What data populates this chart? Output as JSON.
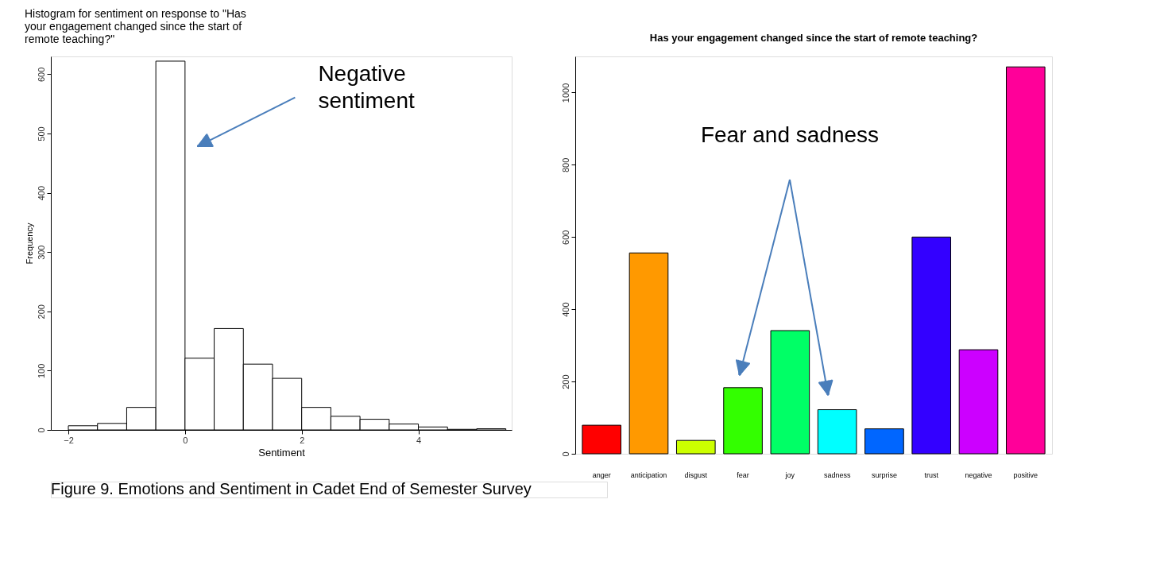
{
  "chart_data": [
    {
      "type": "histogram",
      "title": "Histogram for sentiment on response to  \"Has your engagement changed since the start of remote teaching?\"",
      "xlabel": "Sentiment",
      "ylabel": "Frequency",
      "bins": [
        -2,
        -1.5,
        -1,
        -0.5,
        0,
        0.5,
        1,
        1.5,
        2,
        2.5,
        3,
        3.5,
        4,
        4.5,
        5,
        5.5
      ],
      "values": [
        7,
        11,
        38,
        622,
        121,
        171,
        111,
        87,
        38,
        23,
        18,
        10,
        5,
        1,
        2
      ],
      "color": "#ffffff",
      "xlim": [
        -2.3,
        5.6
      ],
      "xticks": [
        -2,
        0,
        2,
        4
      ],
      "ylim": [
        0,
        630
      ],
      "yticks": [
        0,
        100,
        200,
        300,
        400,
        500,
        600
      ],
      "grid": false,
      "annotations": [
        "Negative sentiment",
        "Figure 9. Emotions and Sentiment in Cadet End of Semester Survey"
      ]
    },
    {
      "type": "bar",
      "title": "Has your engagement changed since the start of remote teaching?",
      "categories": [
        "anger",
        "anticipation",
        "disgust",
        "fear",
        "joy",
        "sadness",
        "surprise",
        "trust",
        "negative",
        "positive"
      ],
      "values": [
        79,
        556,
        37,
        183,
        341,
        122,
        69,
        600,
        288,
        1071
      ],
      "colors": [
        "#ff0000",
        "#ff9900",
        "#ccff00",
        "#33ff00",
        "#00ff66",
        "#00ffff",
        "#0066ff",
        "#3300ff",
        "#cc00ff",
        "#ff0099"
      ],
      "ylim": [
        0,
        1100
      ],
      "yticks": [
        0,
        200,
        400,
        600,
        800,
        1000
      ],
      "grid": false,
      "annotations": [
        "Fear and sadness"
      ]
    }
  ]
}
